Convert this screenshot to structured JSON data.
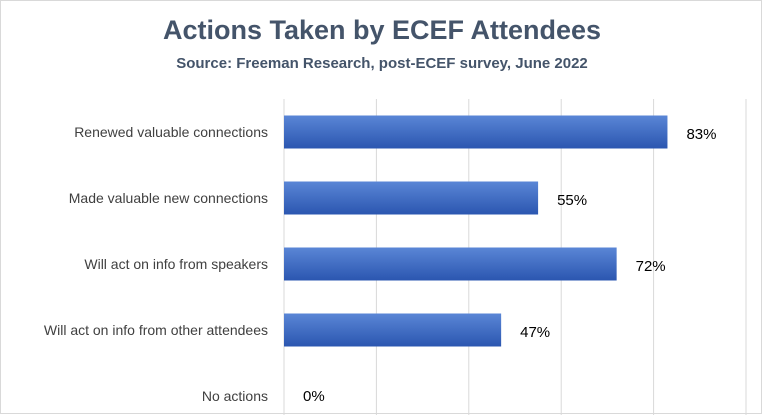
{
  "chart_data": {
    "type": "bar",
    "orientation": "horizontal",
    "title": "Actions Taken by ECEF Attendees",
    "subtitle": "Source: Freeman Research, post-ECEF survey, June 2022",
    "categories": [
      "Renewed  valuable connections",
      "Made valuable new connections",
      "Will act on info from speakers",
      "Will act on info from other attendees",
      "No actions"
    ],
    "values": [
      83,
      55,
      72,
      47,
      0
    ],
    "data_labels": [
      "83%",
      "55%",
      "72%",
      "47%",
      "0%"
    ],
    "xlim": [
      0,
      100
    ],
    "grid": true,
    "colors": {
      "bar_light": "#5a86d6",
      "bar_dark": "#2b56b0",
      "title": "#44546a",
      "grid": "#d9d9d9"
    }
  }
}
